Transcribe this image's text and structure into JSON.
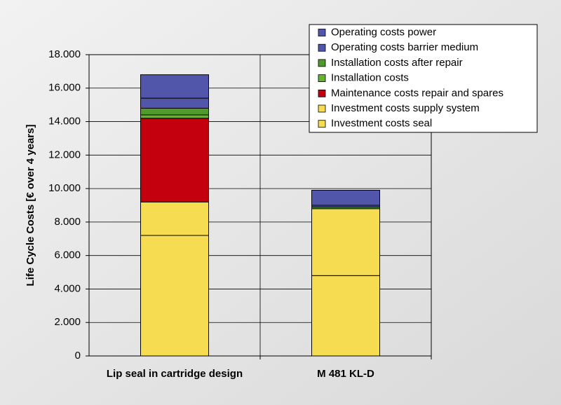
{
  "chart_data": {
    "type": "stacked_bar",
    "y_label": "Life Cycle Costs [€ over 4 years]",
    "categories": [
      "Lip seal in cartridge design",
      "M 481 KL-D"
    ],
    "series": [
      {
        "name": "Investment costs seal",
        "color": "#f5dc50",
        "values": [
          7200,
          4800
        ]
      },
      {
        "name": "Investment costs supply system",
        "color": "#f5dc50",
        "values": [
          2000,
          4000
        ]
      },
      {
        "name": "Maintenance costs repair and spares",
        "color": "#c4000f",
        "values": [
          5000,
          0
        ]
      },
      {
        "name": "Installation costs",
        "color": "#66b32e",
        "values": [
          200,
          0
        ]
      },
      {
        "name": "Installation costs after repair",
        "color": "#4f9a2a",
        "values": [
          400,
          100
        ]
      },
      {
        "name": "Operating costs barrier medium",
        "color": "#5156aa",
        "values": [
          600,
          100
        ]
      },
      {
        "name": "Operating costs power",
        "color": "#5156aa",
        "values": [
          1400,
          900
        ]
      }
    ],
    "ylim": [
      0,
      18000
    ],
    "yticks": [
      0,
      {
        "value": 2000,
        "label": "2.000"
      },
      {
        "value": 4000,
        "label": "4.000"
      },
      {
        "value": 6000,
        "label": "6.000"
      },
      {
        "value": 8000,
        "label": "8.000"
      },
      {
        "value": 10000,
        "label": "10.000"
      },
      {
        "value": 12000,
        "label": "12.000"
      },
      {
        "value": 14000,
        "label": "14.000"
      },
      {
        "value": 16000,
        "label": "16.000"
      },
      {
        "value": 18000,
        "label": "18.000"
      }
    ],
    "grid": true
  }
}
